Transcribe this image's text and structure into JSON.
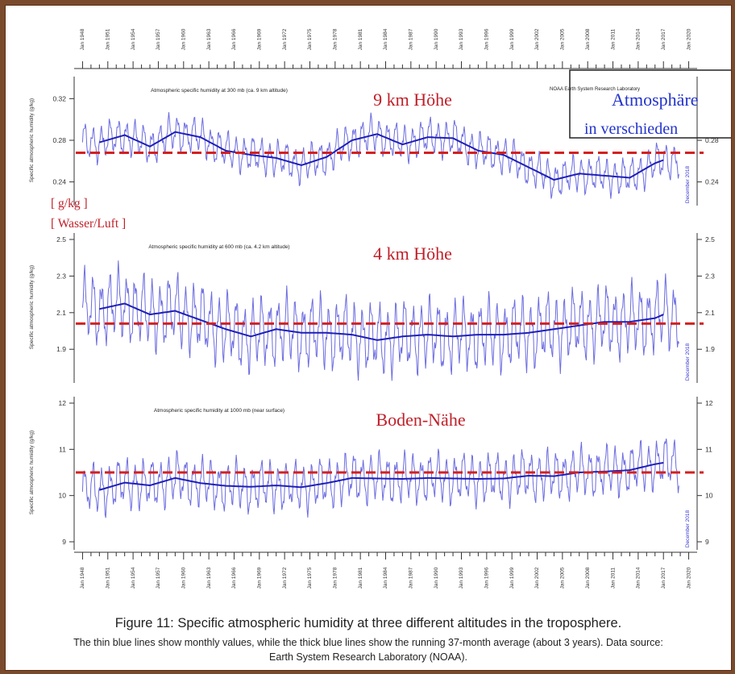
{
  "colors": {
    "monthly": "#3b3bd6",
    "average": "#1f1fb8",
    "reference": "#d42020",
    "panel_label": "#c0202a",
    "overlay_text": "#2233cc",
    "frame": "#7a4a2c"
  },
  "caption": {
    "title": "Figure 11: Specific atmospheric humidity at three different altitudes in the troposphere.",
    "body": "The thin blue lines show monthly values, while the thick blue lines show the running 37-month average (about 3 years). Data source: Earth System Research Laboratory (NOAA)."
  },
  "overlay": {
    "source_label": "NOAA Earth System Research Laboratory",
    "box_line1": "Atmosphäre",
    "box_line2": "in verschieden",
    "unit_line1": "[ g/kg ]",
    "unit_line2": "[ Wasser/Luft ]"
  },
  "chart_data": [
    {
      "type": "line",
      "panel_label": "9 km Höhe",
      "subtitle": "Atmospheric specific humidity at 300 mb (ca. 9 km altitude)",
      "ylabel": "Specific atmospheric humidity (g/kg)",
      "right_note": "December 2018",
      "ylim": [
        0.225,
        0.335
      ],
      "yticks_left": [
        "0.32",
        "0.28",
        "0.24"
      ],
      "yticks_left_values": [
        0.32,
        0.28,
        0.24
      ],
      "yticks_right": [
        "0.28",
        "0.24"
      ],
      "yticks_right_values": [
        0.28,
        0.24
      ],
      "reference_line": 0.268,
      "amplitude": 0.018,
      "series": [
        {
          "name": "Monthly values",
          "style": "thin"
        },
        {
          "name": "37-month running average",
          "style": "thick",
          "x": [
            1950,
            1953,
            1956,
            1959,
            1962,
            1965,
            1968,
            1971,
            1974,
            1977,
            1980,
            1983,
            1986,
            1989,
            1992,
            1995,
            1998,
            2001,
            2004,
            2007,
            2010,
            2013,
            2016,
            2017
          ],
          "values": [
            0.278,
            0.285,
            0.274,
            0.288,
            0.283,
            0.27,
            0.266,
            0.263,
            0.256,
            0.264,
            0.28,
            0.286,
            0.276,
            0.283,
            0.282,
            0.27,
            0.266,
            0.254,
            0.242,
            0.248,
            0.246,
            0.244,
            0.258,
            0.261
          ]
        }
      ]
    },
    {
      "type": "line",
      "panel_label": "4 km Höhe",
      "subtitle": "Atmospheric specific humidity at 600 mb (ca. 4.2 km altitude)",
      "ylabel": "Specific atmospheric humidity (g/kg)",
      "right_note": "December 2018",
      "ylim": [
        1.76,
        2.5
      ],
      "yticks_left": [
        "2.5",
        "2.3",
        "2.1",
        "1.9"
      ],
      "yticks_left_values": [
        2.5,
        2.3,
        2.1,
        1.9
      ],
      "yticks_right": [
        "2.5",
        "2.3",
        "2.1",
        "1.9"
      ],
      "yticks_right_values": [
        2.5,
        2.3,
        2.1,
        1.9
      ],
      "reference_line": 2.04,
      "amplitude": 0.2,
      "series": [
        {
          "name": "Monthly values",
          "style": "thin"
        },
        {
          "name": "37-month running average",
          "style": "thick",
          "x": [
            1950,
            1953,
            1956,
            1959,
            1962,
            1965,
            1968,
            1971,
            1974,
            1977,
            1980,
            1983,
            1986,
            1989,
            1992,
            1995,
            1998,
            2001,
            2004,
            2007,
            2010,
            2013,
            2016,
            2017
          ],
          "values": [
            2.12,
            2.15,
            2.09,
            2.11,
            2.06,
            2.01,
            1.97,
            2.01,
            1.99,
            1.99,
            1.98,
            1.95,
            1.97,
            1.98,
            1.97,
            1.98,
            1.98,
            1.99,
            2.01,
            2.03,
            2.05,
            2.05,
            2.07,
            2.09
          ]
        }
      ]
    },
    {
      "type": "line",
      "panel_label": "Boden-Nähe",
      "subtitle": "Atmospheric specific humidity at 1000 mb (near surface)",
      "ylabel": "Specific atmospheric humidity (g/kg)",
      "right_note": "December 2018",
      "ylim": [
        9,
        12
      ],
      "yticks_left": [
        "12",
        "11",
        "10",
        "9"
      ],
      "yticks_left_values": [
        12,
        11,
        10,
        9
      ],
      "yticks_right": [
        "12",
        "11",
        "10",
        "9"
      ],
      "yticks_right_values": [
        12,
        11,
        10,
        9
      ],
      "reference_line": 10.5,
      "amplitude": 0.55,
      "series": [
        {
          "name": "Monthly values",
          "style": "thin"
        },
        {
          "name": "37-month running average",
          "style": "thick",
          "x": [
            1950,
            1953,
            1956,
            1959,
            1962,
            1965,
            1968,
            1971,
            1974,
            1977,
            1980,
            1983,
            1986,
            1989,
            1992,
            1995,
            1998,
            2001,
            2004,
            2007,
            2010,
            2013,
            2016,
            2017
          ],
          "values": [
            10.12,
            10.28,
            10.22,
            10.38,
            10.27,
            10.21,
            10.19,
            10.22,
            10.18,
            10.27,
            10.38,
            10.37,
            10.36,
            10.38,
            10.37,
            10.36,
            10.37,
            10.43,
            10.42,
            10.5,
            10.52,
            10.55,
            10.68,
            10.71
          ]
        }
      ]
    }
  ],
  "x_axis": {
    "xlim": [
      1947,
      2021
    ],
    "tick_years": [
      1948,
      1951,
      1954,
      1957,
      1960,
      1963,
      1966,
      1969,
      1972,
      1975,
      1978,
      1981,
      1984,
      1987,
      1990,
      1993,
      1996,
      1999,
      2002,
      2005,
      2008,
      2011,
      2014,
      2017,
      2020
    ],
    "tick_labels": [
      "Jan 1948",
      "Jan 1951",
      "Jan 1954",
      "Jan 1957",
      "Jan 1960",
      "Jan 1963",
      "Jan 1966",
      "Jan 1969",
      "Jan 1972",
      "Jan 1975",
      "Jan 1978",
      "Jan 1981",
      "Jan 1984",
      "Jan 1987",
      "Jan 1990",
      "Jan 1993",
      "Jan 1996",
      "Jan 1999",
      "Jan 2002",
      "Jan 2005",
      "Jan 2008",
      "Jan 2011",
      "Jan 2014",
      "Jan 2017",
      "Jan 2020"
    ],
    "monthly_end": 2018.9
  }
}
